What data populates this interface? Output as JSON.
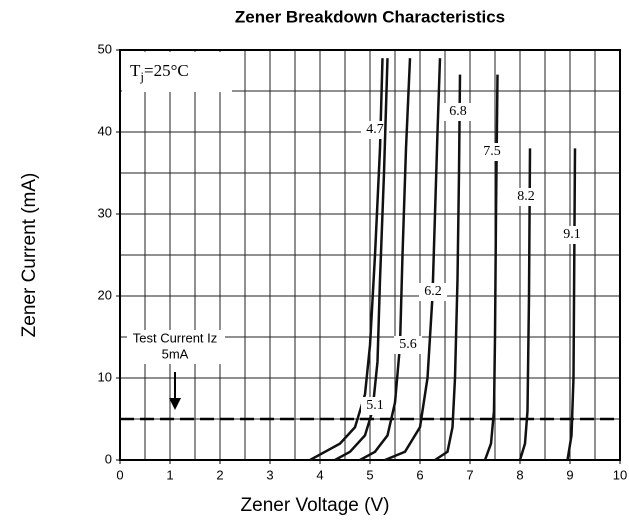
{
  "chart_data": {
    "type": "line",
    "title": "Zener Breakdown Characteristics",
    "xlabel": "Zener Voltage (V)",
    "ylabel": "Zener Current (mA)",
    "xlim": [
      0,
      10
    ],
    "ylim": [
      0,
      50
    ],
    "xticks": [
      0,
      1,
      2,
      3,
      4,
      5,
      6,
      7,
      8,
      9,
      10
    ],
    "yticks": [
      0,
      10,
      20,
      30,
      40,
      50
    ],
    "xgrid": [
      0,
      0.5,
      1,
      1.5,
      2,
      2.5,
      3,
      3.5,
      4,
      4.5,
      5,
      5.5,
      6,
      6.5,
      7,
      7.5,
      8,
      8.5,
      9,
      9.5,
      10
    ],
    "ygrid": [
      0,
      5,
      10,
      15,
      20,
      25,
      30,
      35,
      40,
      45,
      50
    ],
    "grid": true,
    "color": "#111111",
    "series": [
      {
        "name": "4.7",
        "x": [
          3.8,
          4.1,
          4.4,
          4.7,
          4.9,
          5.0,
          5.1,
          5.2,
          5.25
        ],
        "values": [
          0,
          1,
          2,
          4,
          8,
          14,
          25,
          38,
          49
        ]
      },
      {
        "name": "5.1",
        "x": [
          4.3,
          4.6,
          4.9,
          5.05,
          5.15,
          5.2,
          5.28,
          5.35
        ],
        "values": [
          0,
          1,
          3,
          6,
          12,
          22,
          35,
          49
        ]
      },
      {
        "name": "5.6",
        "x": [
          4.8,
          5.1,
          5.35,
          5.5,
          5.6,
          5.65,
          5.72,
          5.8
        ],
        "values": [
          0,
          1,
          3,
          7,
          14,
          25,
          38,
          49
        ]
      },
      {
        "name": "6.2",
        "x": [
          5.3,
          5.7,
          6.0,
          6.15,
          6.25,
          6.3,
          6.35,
          6.4
        ],
        "values": [
          0,
          1,
          4,
          10,
          20,
          30,
          40,
          49
        ]
      },
      {
        "name": "6.8",
        "x": [
          6.3,
          6.55,
          6.65,
          6.7,
          6.75,
          6.78,
          6.8
        ],
        "values": [
          0,
          1,
          4,
          10,
          22,
          35,
          47
        ]
      },
      {
        "name": "7.5",
        "x": [
          7.3,
          7.42,
          7.48,
          7.5,
          7.52,
          7.55
        ],
        "values": [
          0,
          2,
          6,
          15,
          30,
          47
        ]
      },
      {
        "name": "8.2",
        "x": [
          8.0,
          8.1,
          8.15,
          8.18,
          8.2
        ],
        "values": [
          0,
          2,
          6,
          20,
          38
        ]
      },
      {
        "name": "9.1",
        "x": [
          8.95,
          9.03,
          9.07,
          9.1
        ],
        "values": [
          0,
          3,
          10,
          38
        ]
      }
    ],
    "test_current": {
      "value": 5,
      "label_lines": [
        "Test Current Iz",
        "5mA"
      ],
      "arrow_x": 1.1
    },
    "temperature": {
      "symbol": "T",
      "subscript": "j",
      "text": "=25°C"
    }
  }
}
